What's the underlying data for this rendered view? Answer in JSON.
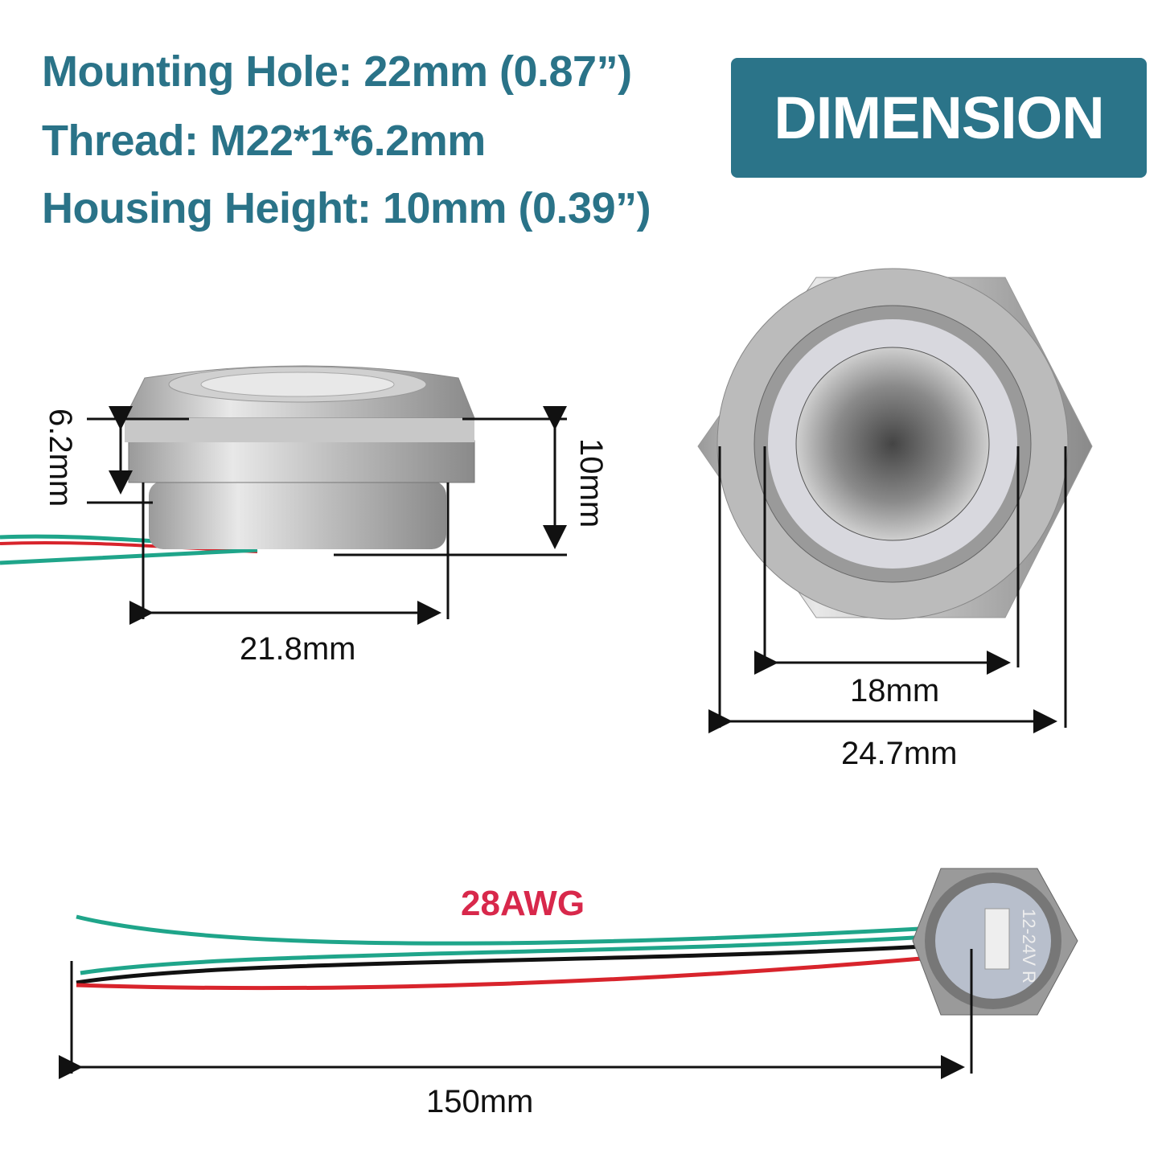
{
  "specs": {
    "mounting_hole": "Mounting Hole: 22mm (0.87”)",
    "thread": "Thread: M22*1*6.2mm",
    "housing_height": "Housing Height: 10mm (0.39”)"
  },
  "badge": "DIMENSION",
  "dimensions": {
    "thread_length": "6.2mm",
    "height": "10mm",
    "thread_diameter": "21.8mm",
    "button_diameter": "18mm",
    "hex_width": "24.7mm",
    "wire_length": "150mm"
  },
  "wire_gauge": "28AWG",
  "back_label": "12-24V R",
  "colors": {
    "accent": "#2b7489",
    "gauge_text": "#d8284b",
    "wire_green": "#1fa58a",
    "wire_red": "#d8242c",
    "wire_black": "#111111"
  }
}
